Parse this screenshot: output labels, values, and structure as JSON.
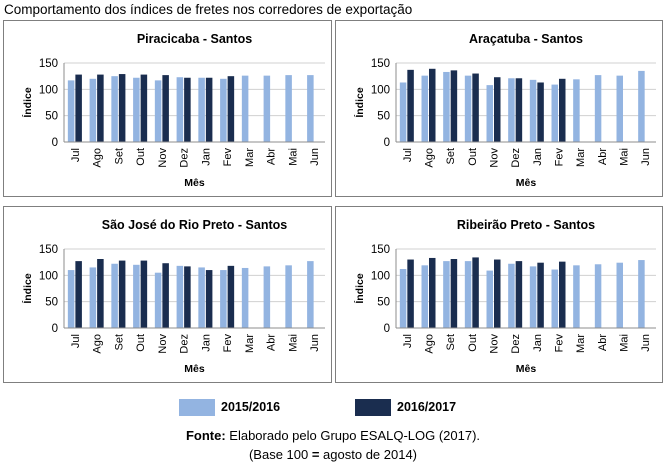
{
  "page_title": "Comportamento dos índices de fretes nos corredores de exportação",
  "legend": [
    {
      "label": "2015/2016",
      "color": "#93b4e1"
    },
    {
      "label": "2016/2017",
      "color": "#1a2d4f"
    }
  ],
  "footer": {
    "source_label": "Fonte:",
    "source_text": " Elaborado pelo Grupo ESALQ-LOG (2017).",
    "base_open": "(Base 100 ",
    "base_equals": "=",
    "base_close": " agosto de 2014)"
  },
  "chart_data": [
    {
      "type": "bar",
      "title": "Piracicaba - Santos",
      "xlabel": "Mês",
      "ylabel": "Índice",
      "ylim": [
        0,
        150
      ],
      "yticks": [
        0,
        50,
        100,
        150
      ],
      "categories": [
        "Jul",
        "Ago",
        "Set",
        "Out",
        "Nov",
        "Dez",
        "Jan",
        "Fev",
        "Mar",
        "Abr",
        "Mai",
        "Jun"
      ],
      "series": [
        {
          "name": "2015/2016",
          "color": "#93b4e1",
          "values": [
            117,
            120,
            125,
            122,
            117,
            123,
            122,
            120,
            126,
            126,
            127,
            127
          ]
        },
        {
          "name": "2016/2017",
          "color": "#1a2d4f",
          "values": [
            128,
            128,
            129,
            128,
            127,
            122,
            122,
            125,
            null,
            null,
            null,
            null
          ]
        }
      ]
    },
    {
      "type": "bar",
      "title": "Araçatuba - Santos",
      "xlabel": "Mês",
      "ylabel": "Índice",
      "ylim": [
        0,
        150
      ],
      "yticks": [
        0,
        50,
        100,
        150
      ],
      "categories": [
        "Jul",
        "Ago",
        "Set",
        "Out",
        "Nov",
        "Dez",
        "Jan",
        "Fev",
        "Mar",
        "Abr",
        "Mai",
        "Jun"
      ],
      "series": [
        {
          "name": "2015/2016",
          "color": "#93b4e1",
          "values": [
            113,
            126,
            133,
            126,
            108,
            121,
            118,
            109,
            119,
            127,
            126,
            135
          ]
        },
        {
          "name": "2016/2017",
          "color": "#1a2d4f",
          "values": [
            137,
            139,
            136,
            130,
            123,
            121,
            113,
            120,
            null,
            null,
            null,
            null
          ]
        }
      ]
    },
    {
      "type": "bar",
      "title": "São José do Rio Preto - Santos",
      "xlabel": "Mês",
      "ylabel": "Índice",
      "ylim": [
        0,
        150
      ],
      "yticks": [
        0,
        50,
        100,
        150
      ],
      "categories": [
        "Jul",
        "Ago",
        "Set",
        "Out",
        "Nov",
        "Dez",
        "Jan",
        "Fev",
        "Mar",
        "Abr",
        "Mai",
        "Jun"
      ],
      "series": [
        {
          "name": "2015/2016",
          "color": "#93b4e1",
          "values": [
            110,
            115,
            122,
            120,
            105,
            118,
            115,
            110,
            114,
            117,
            119,
            127
          ]
        },
        {
          "name": "2016/2017",
          "color": "#1a2d4f",
          "values": [
            127,
            131,
            128,
            128,
            123,
            117,
            110,
            118,
            null,
            null,
            null,
            null
          ]
        }
      ]
    },
    {
      "type": "bar",
      "title": "Ribeirão Preto - Santos",
      "xlabel": "Mês",
      "ylabel": "Índice",
      "ylim": [
        0,
        150
      ],
      "yticks": [
        0,
        50,
        100,
        150
      ],
      "categories": [
        "Jul",
        "Ago",
        "Set",
        "Out",
        "Nov",
        "Dez",
        "Jan",
        "Fev",
        "Mar",
        "Abr",
        "Mai",
        "Jun"
      ],
      "series": [
        {
          "name": "2015/2016",
          "color": "#93b4e1",
          "values": [
            112,
            119,
            127,
            127,
            109,
            122,
            117,
            111,
            119,
            121,
            124,
            129
          ]
        },
        {
          "name": "2016/2017",
          "color": "#1a2d4f",
          "values": [
            130,
            133,
            131,
            134,
            130,
            127,
            124,
            126,
            null,
            null,
            null,
            null
          ]
        }
      ]
    }
  ]
}
